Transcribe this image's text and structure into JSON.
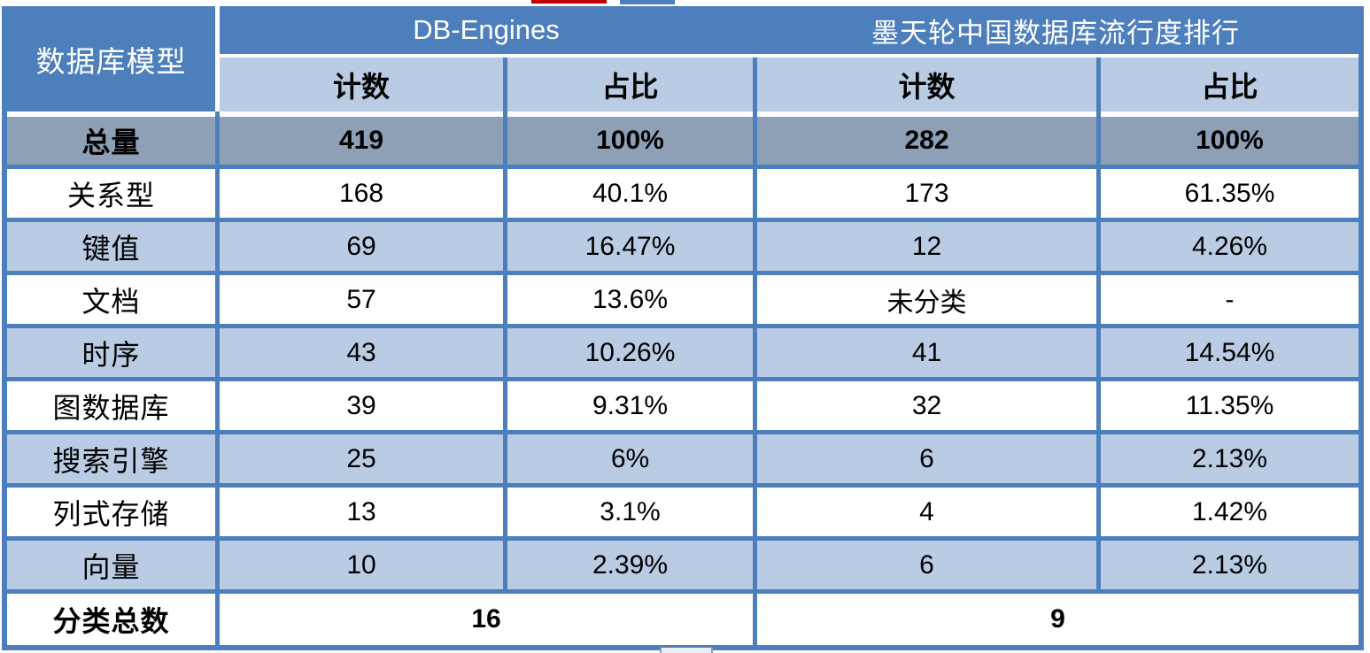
{
  "table": {
    "corner_label": "数据库模型",
    "groups": [
      {
        "label": "DB-Engines",
        "subcolumns": [
          "计数",
          "占比"
        ]
      },
      {
        "label": "墨天轮中国数据库流行度排行",
        "subcolumns": [
          "计数",
          "占比"
        ]
      }
    ],
    "rows": [
      {
        "label": "总量",
        "values": [
          "419",
          "100%",
          "282",
          "100%"
        ],
        "emphasis": "total"
      },
      {
        "label": "关系型",
        "values": [
          "168",
          "40.1%",
          "173",
          "61.35%"
        ]
      },
      {
        "label": "键值",
        "values": [
          "69",
          "16.47%",
          "12",
          "4.26%"
        ]
      },
      {
        "label": "文档",
        "values": [
          "57",
          "13.6%",
          "未分类",
          "-"
        ]
      },
      {
        "label": "时序",
        "values": [
          "43",
          "10.26%",
          "41",
          "14.54%"
        ]
      },
      {
        "label": "图数据库",
        "values": [
          "39",
          "9.31%",
          "32",
          "11.35%"
        ]
      },
      {
        "label": "搜索引擎",
        "values": [
          "25",
          "6%",
          "6",
          "2.13%"
        ]
      },
      {
        "label": "列式存储",
        "values": [
          "13",
          "3.1%",
          "4",
          "1.42%"
        ]
      },
      {
        "label": "向量",
        "values": [
          "10",
          "2.39%",
          "6",
          "2.13%"
        ]
      }
    ],
    "footer": {
      "label": "分类总数",
      "values": [
        "16",
        "9"
      ]
    }
  },
  "colors": {
    "header_blue": "#4E7FBD",
    "border_blue": "#4E7FBD",
    "light_blue": "#B9CCE4",
    "total_gray": "#8EA0B6",
    "header_text": "#FFFFFF",
    "body_text": "#000000",
    "artifact_red": "#C00000"
  }
}
